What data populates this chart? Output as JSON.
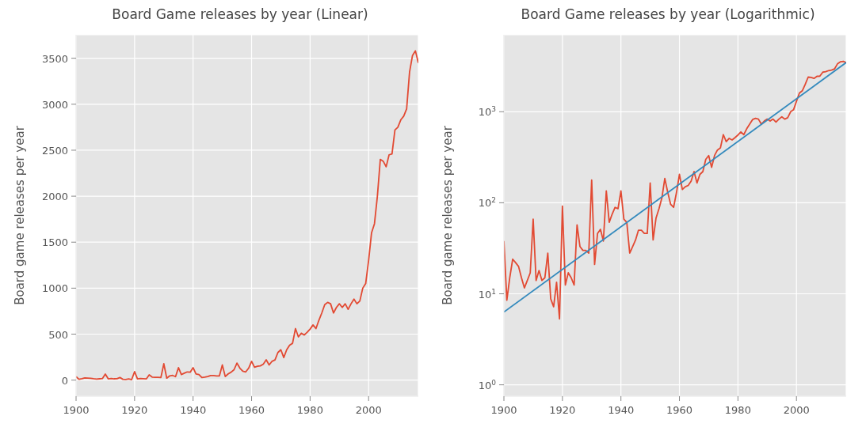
{
  "chart_data": [
    {
      "type": "line",
      "title": "Board Game releases by year (Linear)",
      "ylabel": "Board game releases per year",
      "x": [
        1900,
        1901,
        1902,
        1903,
        1904,
        1905,
        1906,
        1907,
        1908,
        1909,
        1910,
        1911,
        1912,
        1913,
        1914,
        1915,
        1916,
        1917,
        1918,
        1919,
        1920,
        1921,
        1922,
        1923,
        1924,
        1925,
        1926,
        1927,
        1928,
        1929,
        1930,
        1931,
        1932,
        1933,
        1934,
        1935,
        1936,
        1937,
        1938,
        1939,
        1940,
        1941,
        1942,
        1943,
        1944,
        1945,
        1946,
        1947,
        1948,
        1949,
        1950,
        1951,
        1952,
        1953,
        1954,
        1955,
        1956,
        1957,
        1958,
        1959,
        1960,
        1961,
        1962,
        1963,
        1964,
        1965,
        1966,
        1967,
        1968,
        1969,
        1970,
        1971,
        1972,
        1973,
        1974,
        1975,
        1976,
        1977,
        1978,
        1979,
        1980,
        1981,
        1982,
        1983,
        1984,
        1985,
        1986,
        1987,
        1988,
        1989,
        1990,
        1991,
        1992,
        1993,
        1994,
        1995,
        1996,
        1997,
        1998,
        1999,
        2000,
        2001,
        2002,
        2003,
        2004,
        2005,
        2006,
        2007,
        2008,
        2009,
        2010,
        2011,
        2012,
        2013,
        2014,
        2015,
        2016,
        2017
      ],
      "series": [
        {
          "color": "#e24a33",
          "values": [
            38,
            8.5,
            15,
            24,
            22,
            20,
            15,
            11.6,
            14,
            17,
            66,
            14,
            18,
            14,
            15,
            28,
            8.8,
            7.2,
            13.4,
            5.3,
            92,
            12.5,
            17,
            15,
            12.5,
            57,
            33,
            30,
            30,
            28,
            178,
            21,
            46,
            51,
            38,
            135,
            61,
            75,
            89,
            86,
            135,
            66,
            61,
            28,
            33,
            39,
            50,
            50,
            46,
            46,
            165,
            39,
            68,
            86,
            113,
            185,
            130,
            96,
            89,
            130,
            205,
            140,
            150,
            155,
            173,
            220,
            165,
            205,
            220,
            300,
            330,
            245,
            330,
            380,
            400,
            560,
            470,
            510,
            490,
            520,
            555,
            600,
            560,
            650,
            730,
            820,
            845,
            830,
            730,
            790,
            830,
            790,
            830,
            770,
            830,
            880,
            830,
            860,
            1000,
            1050,
            1300,
            1600,
            1700,
            2000,
            2400,
            2380,
            2320,
            2450,
            2460,
            2720,
            2750,
            2830,
            2870,
            2950,
            3350,
            3530,
            3580,
            3450
          ]
        }
      ],
      "xlim": [
        1900,
        2017
      ],
      "xticks": [
        1900,
        1920,
        1940,
        1960,
        1980,
        2000
      ],
      "ylim": [
        -175,
        3755
      ],
      "yticks": [
        0,
        500,
        1000,
        1500,
        2000,
        2500,
        3000,
        3500
      ],
      "grid": true
    },
    {
      "type": "line",
      "title": "Board Game releases by year (Logarithmic)",
      "ylabel": "Board game releases per year",
      "x": [
        1900,
        1901,
        1902,
        1903,
        1904,
        1905,
        1906,
        1907,
        1908,
        1909,
        1910,
        1911,
        1912,
        1913,
        1914,
        1915,
        1916,
        1917,
        1918,
        1919,
        1920,
        1921,
        1922,
        1923,
        1924,
        1925,
        1926,
        1927,
        1928,
        1929,
        1930,
        1931,
        1932,
        1933,
        1934,
        1935,
        1936,
        1937,
        1938,
        1939,
        1940,
        1941,
        1942,
        1943,
        1944,
        1945,
        1946,
        1947,
        1948,
        1949,
        1950,
        1951,
        1952,
        1953,
        1954,
        1955,
        1956,
        1957,
        1958,
        1959,
        1960,
        1961,
        1962,
        1963,
        1964,
        1965,
        1966,
        1967,
        1968,
        1969,
        1970,
        1971,
        1972,
        1973,
        1974,
        1975,
        1976,
        1977,
        1978,
        1979,
        1980,
        1981,
        1982,
        1983,
        1984,
        1985,
        1986,
        1987,
        1988,
        1989,
        1990,
        1991,
        1992,
        1993,
        1994,
        1995,
        1996,
        1997,
        1998,
        1999,
        2000,
        2001,
        2002,
        2003,
        2004,
        2005,
        2006,
        2007,
        2008,
        2009,
        2010,
        2011,
        2012,
        2013,
        2014,
        2015,
        2016,
        2017
      ],
      "series": [
        {
          "color": "#e24a33",
          "values": [
            38,
            8.5,
            15,
            24,
            22,
            20,
            15,
            11.6,
            14,
            17,
            66,
            14,
            18,
            14,
            15,
            28,
            8.8,
            7.2,
            13.4,
            5.3,
            92,
            12.5,
            17,
            15,
            12.5,
            57,
            33,
            30,
            30,
            28,
            178,
            21,
            46,
            51,
            38,
            135,
            61,
            75,
            89,
            86,
            135,
            66,
            61,
            28,
            33,
            39,
            50,
            50,
            46,
            46,
            165,
            39,
            68,
            86,
            113,
            185,
            130,
            96,
            89,
            130,
            205,
            140,
            150,
            155,
            173,
            220,
            165,
            205,
            220,
            300,
            330,
            245,
            330,
            380,
            400,
            560,
            470,
            510,
            490,
            520,
            555,
            600,
            560,
            650,
            730,
            820,
            845,
            830,
            730,
            790,
            830,
            790,
            830,
            770,
            830,
            880,
            830,
            860,
            1000,
            1050,
            1300,
            1600,
            1700,
            2000,
            2400,
            2380,
            2320,
            2450,
            2460,
            2720,
            2750,
            2830,
            2870,
            2950,
            3350,
            3530,
            3580,
            3450
          ]
        },
        {
          "type": "line",
          "color": "#348abd",
          "x": [
            1900,
            2017
          ],
          "values": [
            6.3,
            3470
          ]
        }
      ],
      "xlim": [
        1900,
        2017
      ],
      "xticks": [
        1900,
        1920,
        1940,
        1960,
        1980,
        2000
      ],
      "ylim": [
        0.75,
        7000
      ],
      "yticks": [
        {
          "value": 1,
          "label": "10$^{0}$"
        },
        {
          "value": 10,
          "label": "10$^{1}$"
        },
        {
          "value": 100,
          "label": "10$^{2}$"
        },
        {
          "value": 1000,
          "label": "10$^{3}$"
        }
      ],
      "log": true,
      "grid": true
    }
  ]
}
